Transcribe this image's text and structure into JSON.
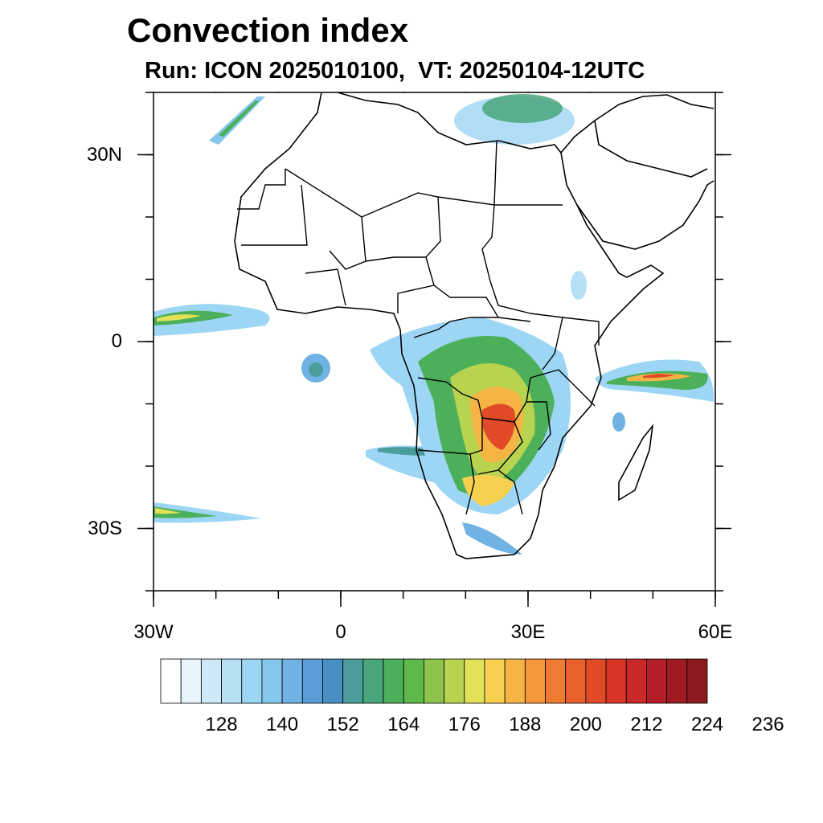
{
  "title": "Convection index",
  "subtitle": "Run: ICON 2025010100,  VT: 20250104-12UTC",
  "axes": {
    "lon_ticks": [
      {
        "value": -30,
        "label": "30W"
      },
      {
        "value": 0,
        "label": "0"
      },
      {
        "value": 30,
        "label": "30E"
      },
      {
        "value": 60,
        "label": "60E"
      }
    ],
    "lat_ticks": [
      {
        "value": 30,
        "label": "30N"
      },
      {
        "value": 0,
        "label": "0"
      },
      {
        "value": -30,
        "label": "30S"
      }
    ],
    "lon_range": [
      -30,
      60
    ],
    "lat_range": [
      -40,
      40
    ]
  },
  "colorbar": {
    "colors": [
      "#ffffff",
      "#e8f5fc",
      "#cde9f8",
      "#b5e0f6",
      "#9dd6f4",
      "#85c6ec",
      "#6fb2e3",
      "#5a9cd6",
      "#4a8fc4",
      "#4a9d9b",
      "#49a67a",
      "#4cb05b",
      "#5fb84a",
      "#8ec44e",
      "#b8d34f",
      "#e3e158",
      "#f6d14f",
      "#f6b445",
      "#f5983b",
      "#ef7a32",
      "#e8602b",
      "#e04a27",
      "#d83526",
      "#c92a29",
      "#b41e28",
      "#a01a22",
      "#8c1a1e"
    ],
    "tick_labels": [
      "128",
      "140",
      "152",
      "164",
      "176",
      "188",
      "200",
      "212",
      "224",
      "236"
    ]
  }
}
